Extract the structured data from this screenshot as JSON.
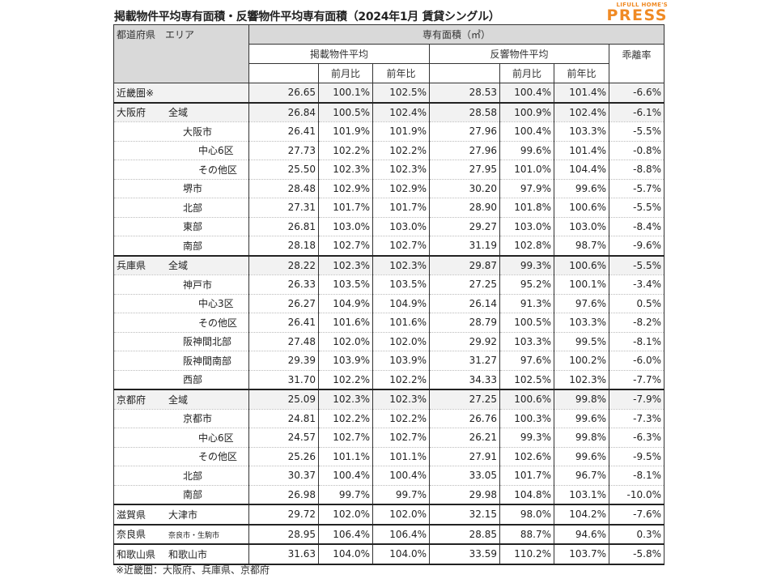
{
  "title": "掲載物件平均専有面積・反響物件平均専有面積（2024年1月 賃貸シングル）",
  "logo": {
    "line1": "LIFULL HOME'S",
    "line2": "PRESS",
    "color": "#f08a24"
  },
  "header": {
    "area": "都道府県　エリア",
    "group": "専有面積（㎡）",
    "listed": "掲載物件平均",
    "response": "反響物件平均",
    "mom": "前月比",
    "yoy": "前年比",
    "gap": "乖離率"
  },
  "rows": [
    {
      "pref": "近畿圏※",
      "area": "",
      "level": 0,
      "v": [
        "26.65",
        "100.1%",
        "102.5%",
        "28.53",
        "100.4%",
        "101.4%",
        "-6.6%"
      ]
    },
    {
      "pref": "大阪府",
      "area": "全域",
      "level": 1,
      "v": [
        "26.84",
        "100.5%",
        "102.4%",
        "28.58",
        "100.9%",
        "102.4%",
        "-6.1%"
      ]
    },
    {
      "pref": "",
      "area": "大阪市",
      "level": 2,
      "v": [
        "26.41",
        "101.9%",
        "101.9%",
        "27.96",
        "100.4%",
        "103.3%",
        "-5.5%"
      ]
    },
    {
      "pref": "",
      "area": "中心6区",
      "level": 3,
      "v": [
        "27.73",
        "102.2%",
        "102.2%",
        "27.96",
        "99.6%",
        "101.4%",
        "-0.8%"
      ]
    },
    {
      "pref": "",
      "area": "その他区",
      "level": 3,
      "v": [
        "25.50",
        "102.3%",
        "102.3%",
        "27.95",
        "101.0%",
        "104.4%",
        "-8.8%"
      ]
    },
    {
      "pref": "",
      "area": "堺市",
      "level": 2,
      "v": [
        "28.48",
        "102.9%",
        "102.9%",
        "30.20",
        "97.9%",
        "99.6%",
        "-5.7%"
      ]
    },
    {
      "pref": "",
      "area": "北部",
      "level": 2,
      "v": [
        "27.31",
        "101.7%",
        "101.7%",
        "28.90",
        "101.8%",
        "100.6%",
        "-5.5%"
      ]
    },
    {
      "pref": "",
      "area": "東部",
      "level": 2,
      "v": [
        "26.81",
        "103.0%",
        "103.0%",
        "29.27",
        "103.0%",
        "103.0%",
        "-8.4%"
      ]
    },
    {
      "pref": "",
      "area": "南部",
      "level": 2,
      "v": [
        "28.18",
        "102.7%",
        "102.7%",
        "31.19",
        "102.8%",
        "98.7%",
        "-9.6%"
      ]
    },
    {
      "pref": "兵庫県",
      "area": "全域",
      "level": 1,
      "v": [
        "28.22",
        "102.3%",
        "102.3%",
        "29.87",
        "99.3%",
        "100.6%",
        "-5.5%"
      ]
    },
    {
      "pref": "",
      "area": "神戸市",
      "level": 2,
      "v": [
        "26.33",
        "103.5%",
        "103.5%",
        "27.25",
        "95.2%",
        "100.1%",
        "-3.4%"
      ]
    },
    {
      "pref": "",
      "area": "中心3区",
      "level": 3,
      "v": [
        "26.27",
        "104.9%",
        "104.9%",
        "26.14",
        "91.3%",
        "97.6%",
        "0.5%"
      ]
    },
    {
      "pref": "",
      "area": "その他区",
      "level": 3,
      "v": [
        "26.41",
        "101.6%",
        "101.6%",
        "28.79",
        "100.5%",
        "103.3%",
        "-8.2%"
      ]
    },
    {
      "pref": "",
      "area": "阪神間北部",
      "level": 2,
      "v": [
        "27.48",
        "102.0%",
        "102.0%",
        "29.92",
        "103.3%",
        "99.5%",
        "-8.1%"
      ]
    },
    {
      "pref": "",
      "area": "阪神間南部",
      "level": 2,
      "v": [
        "29.39",
        "103.9%",
        "103.9%",
        "31.27",
        "97.6%",
        "100.2%",
        "-6.0%"
      ]
    },
    {
      "pref": "",
      "area": "西部",
      "level": 2,
      "v": [
        "31.70",
        "102.2%",
        "102.2%",
        "34.33",
        "102.5%",
        "102.3%",
        "-7.7%"
      ]
    },
    {
      "pref": "京都府",
      "area": "全域",
      "level": 1,
      "v": [
        "25.09",
        "102.3%",
        "102.3%",
        "27.25",
        "100.6%",
        "99.8%",
        "-7.9%"
      ]
    },
    {
      "pref": "",
      "area": "京都市",
      "level": 2,
      "v": [
        "24.81",
        "102.2%",
        "102.2%",
        "26.76",
        "100.3%",
        "99.6%",
        "-7.3%"
      ]
    },
    {
      "pref": "",
      "area": "中心6区",
      "level": 3,
      "v": [
        "24.57",
        "102.7%",
        "102.7%",
        "26.21",
        "99.3%",
        "99.8%",
        "-6.3%"
      ]
    },
    {
      "pref": "",
      "area": "その他区",
      "level": 3,
      "v": [
        "25.26",
        "101.1%",
        "101.1%",
        "27.91",
        "102.6%",
        "99.6%",
        "-9.5%"
      ]
    },
    {
      "pref": "",
      "area": "北部",
      "level": 2,
      "v": [
        "30.37",
        "100.4%",
        "100.4%",
        "33.05",
        "101.7%",
        "96.7%",
        "-8.1%"
      ]
    },
    {
      "pref": "",
      "area": "南部",
      "level": 2,
      "v": [
        "26.98",
        "99.7%",
        "99.7%",
        "29.98",
        "104.8%",
        "103.1%",
        "-10.0%"
      ]
    },
    {
      "pref": "滋賀県",
      "area": "大津市",
      "level": 4,
      "v": [
        "29.72",
        "102.0%",
        "102.0%",
        "32.15",
        "98.0%",
        "104.2%",
        "-7.6%"
      ]
    },
    {
      "pref": "奈良県",
      "area": "奈良市・生駒市",
      "level": 5,
      "v": [
        "28.95",
        "106.4%",
        "106.4%",
        "28.85",
        "88.7%",
        "94.6%",
        "0.3%"
      ]
    },
    {
      "pref": "和歌山県",
      "area": "和歌山市",
      "level": 4,
      "v": [
        "31.63",
        "104.0%",
        "104.0%",
        "33.59",
        "110.2%",
        "103.7%",
        "-5.8%"
      ]
    }
  ],
  "footnote": "※近畿圏：大阪府、兵庫県、京都府"
}
